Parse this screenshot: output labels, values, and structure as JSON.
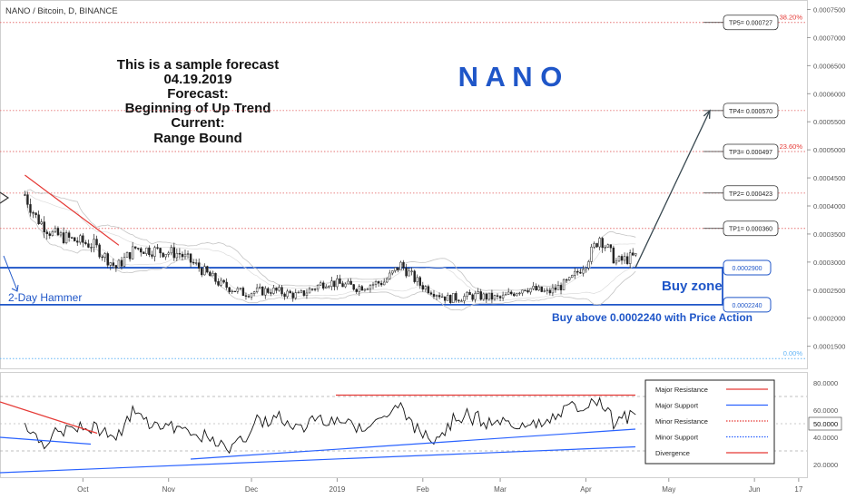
{
  "header": {
    "symbol_line": "NANO / Bitcoin, D, BINANCE"
  },
  "title_block": {
    "lines": [
      "This is a sample forecast",
      "04.19.2019",
      "Forecast:",
      "Beginning of Up Trend",
      "Current:",
      "Range Bound"
    ]
  },
  "watermark": "N A N O",
  "colors": {
    "candle_up": "#ffffff",
    "candle_down": "#222222",
    "zone_line": "#1f56c8",
    "text_blue": "#1f56c8",
    "fib_red": "#e53935",
    "major_resistance": "#e53935",
    "major_support": "#2962ff",
    "tp_line": "#e57373",
    "fib_zero": "#64b5f6"
  },
  "price_axis": {
    "ticks": [
      "0.0007500",
      "0.0007000",
      "0.0006500",
      "0.0006000",
      "0.0005500",
      "0.0005000",
      "0.0004500",
      "0.0004000",
      "0.0003500",
      "0.0003000",
      "0.0002500",
      "0.0002000",
      "0.0001500"
    ]
  },
  "indicator_axis": {
    "ticks": [
      "80.0000",
      "60.0000",
      "40.0000",
      "20.0000"
    ],
    "current": "50.0000"
  },
  "time_axis": {
    "labels": [
      "Oct",
      "Nov",
      "Dec",
      "2019",
      "Feb",
      "Mar",
      "Apr",
      "May",
      "Jun",
      "17"
    ]
  },
  "targets": [
    {
      "label": "TP5= 0.000727",
      "value": 0.000727
    },
    {
      "label": "TP4= 0.000570",
      "value": 0.00057
    },
    {
      "label": "TP3= 0.000497",
      "value": 0.000497
    },
    {
      "label": "TP2= 0.000423",
      "value": 0.000423
    },
    {
      "label": "TP1= 0.000360",
      "value": 0.00036
    }
  ],
  "fib_levels": [
    {
      "label": "38.20%",
      "value": 0.000727
    },
    {
      "label": "23.60%",
      "value": 0.000497
    },
    {
      "label": "0.00%",
      "value": 0.000128
    }
  ],
  "buy_zone": {
    "upper_label": "0.0002900",
    "upper": 0.00029,
    "lower_label": "0.0002240",
    "lower": 0.000224,
    "title": "Buy zone",
    "note": "Buy above 0.0002240 with Price Action"
  },
  "hammer_label": "2-Day Hammer",
  "legend": {
    "items": [
      {
        "label": "Major Resistance",
        "color": "#e53935",
        "style": "solid"
      },
      {
        "label": "Major Support",
        "color": "#2962ff",
        "style": "solid"
      },
      {
        "label": "Minor Resistance",
        "color": "#e53935",
        "style": "dotted"
      },
      {
        "label": "Minor Support",
        "color": "#2962ff",
        "style": "dotted"
      },
      {
        "label": "Divergence",
        "color": "#e53935",
        "style": "solid"
      }
    ]
  },
  "chart_data": {
    "type": "candlestick",
    "title": "NANO / Bitcoin, D, BINANCE",
    "x_range": [
      "2018-09-01",
      "2019-06-20"
    ],
    "y_range": [
      0.000109,
      0.000767
    ],
    "month_ticks": [
      {
        "label": "Oct",
        "date": "2018-10-01"
      },
      {
        "label": "Nov",
        "date": "2018-11-01"
      },
      {
        "label": "Dec",
        "date": "2018-12-01"
      },
      {
        "label": "2019",
        "date": "2019-01-01"
      },
      {
        "label": "Feb",
        "date": "2019-02-01"
      },
      {
        "label": "Mar",
        "date": "2019-03-01"
      },
      {
        "label": "Apr",
        "date": "2019-04-01"
      },
      {
        "label": "May",
        "date": "2019-05-01"
      },
      {
        "label": "Jun",
        "date": "2019-06-01"
      },
      {
        "label": "17",
        "date": "2019-06-17"
      }
    ],
    "price_path": [
      {
        "date": "2018-09-10",
        "close": 0.00042
      },
      {
        "date": "2018-09-14",
        "close": 0.00038
      },
      {
        "date": "2018-09-20",
        "close": 0.00035
      },
      {
        "date": "2018-09-27",
        "close": 0.00034
      },
      {
        "date": "2018-10-05",
        "close": 0.00033
      },
      {
        "date": "2018-10-13",
        "close": 0.00029
      },
      {
        "date": "2018-10-20",
        "close": 0.000325
      },
      {
        "date": "2018-10-28",
        "close": 0.00032
      },
      {
        "date": "2018-11-05",
        "close": 0.000315
      },
      {
        "date": "2018-11-12",
        "close": 0.00029
      },
      {
        "date": "2018-11-20",
        "close": 0.00026
      },
      {
        "date": "2018-11-28",
        "close": 0.000245
      },
      {
        "date": "2018-12-08",
        "close": 0.00025
      },
      {
        "date": "2018-12-18",
        "close": 0.00024
      },
      {
        "date": "2018-12-28",
        "close": 0.000265
      },
      {
        "date": "2019-01-08",
        "close": 0.000255
      },
      {
        "date": "2019-01-18",
        "close": 0.000265
      },
      {
        "date": "2019-01-24",
        "close": 0.000295
      },
      {
        "date": "2019-01-31",
        "close": 0.00026
      },
      {
        "date": "2019-02-10",
        "close": 0.000235
      },
      {
        "date": "2019-02-20",
        "close": 0.00024
      },
      {
        "date": "2019-03-01",
        "close": 0.000235
      },
      {
        "date": "2019-03-10",
        "close": 0.000255
      },
      {
        "date": "2019-03-18",
        "close": 0.000245
      },
      {
        "date": "2019-03-26",
        "close": 0.000265
      },
      {
        "date": "2019-04-01",
        "close": 0.0003
      },
      {
        "date": "2019-04-06",
        "close": 0.000345
      },
      {
        "date": "2019-04-12",
        "close": 0.0003
      },
      {
        "date": "2019-04-19",
        "close": 0.00031
      }
    ]
  }
}
